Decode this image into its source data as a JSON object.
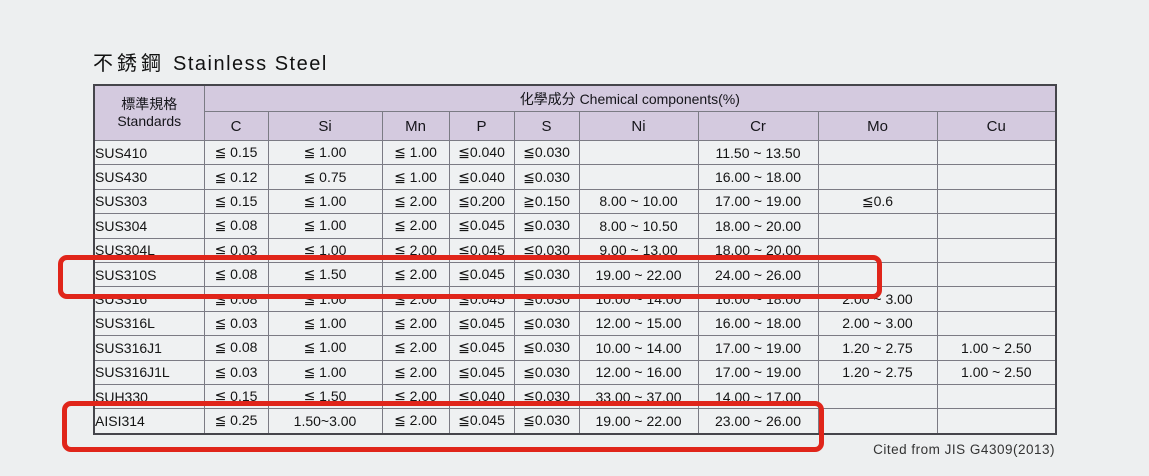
{
  "page": {
    "title_cjk": "不銹鋼",
    "title_en": "Stainless Steel",
    "footer": "Cited from JIS G4309(2013)"
  },
  "table": {
    "standards_header_cjk": "標準規格",
    "standards_header_en": "Standards",
    "group_header": "化學成分 Chemical components(%)",
    "columns": [
      "C",
      "Si",
      "Mn",
      "P",
      "S",
      "Ni",
      "Cr",
      "Mo",
      "Cu"
    ],
    "rows": [
      {
        "standard": "SUS410",
        "highlighted": false,
        "values": [
          "≦ 0.15",
          "≦ 1.00",
          "≦ 1.00",
          "≦0.040",
          "≦0.030",
          "",
          "11.50 ~ 13.50",
          "",
          ""
        ]
      },
      {
        "standard": "SUS430",
        "highlighted": false,
        "values": [
          "≦ 0.12",
          "≦ 0.75",
          "≦ 1.00",
          "≦0.040",
          "≦0.030",
          "",
          "16.00 ~ 18.00",
          "",
          ""
        ]
      },
      {
        "standard": "SUS303",
        "highlighted": false,
        "values": [
          "≦ 0.15",
          "≦ 1.00",
          "≦ 2.00",
          "≦0.200",
          "≧0.150",
          "8.00 ~ 10.00",
          "17.00 ~ 19.00",
          "≦0.6",
          ""
        ]
      },
      {
        "standard": "SUS304",
        "highlighted": false,
        "values": [
          "≦ 0.08",
          "≦ 1.00",
          "≦ 2.00",
          "≦0.045",
          "≦0.030",
          "8.00 ~ 10.50",
          "18.00 ~ 20.00",
          "",
          ""
        ]
      },
      {
        "standard": "SUS304L",
        "highlighted": false,
        "values": [
          "≦ 0.03",
          "≦ 1.00",
          "≦ 2.00",
          "≦0.045",
          "≦0.030",
          "9.00 ~ 13.00",
          "18.00 ~ 20.00",
          "",
          ""
        ]
      },
      {
        "standard": "SUS310S",
        "highlighted": true,
        "values": [
          "≦ 0.08",
          "≦ 1.50",
          "≦ 2.00",
          "≦0.045",
          "≦0.030",
          "19.00 ~ 22.00",
          "24.00 ~ 26.00",
          "",
          ""
        ]
      },
      {
        "standard": "SUS316",
        "highlighted": false,
        "values": [
          "≦ 0.08",
          "≦ 1.00",
          "≦ 2.00",
          "≦0.045",
          "≦0.030",
          "10.00 ~ 14.00",
          "16.00 ~ 18.00",
          "2.00 ~ 3.00",
          ""
        ]
      },
      {
        "standard": "SUS316L",
        "highlighted": false,
        "values": [
          "≦ 0.03",
          "≦ 1.00",
          "≦ 2.00",
          "≦0.045",
          "≦0.030",
          "12.00 ~ 15.00",
          "16.00 ~ 18.00",
          "2.00 ~ 3.00",
          ""
        ]
      },
      {
        "standard": "SUS316J1",
        "highlighted": false,
        "values": [
          "≦ 0.08",
          "≦ 1.00",
          "≦ 2.00",
          "≦0.045",
          "≦0.030",
          "10.00 ~ 14.00",
          "17.00 ~ 19.00",
          "1.20 ~ 2.75",
          "1.00 ~ 2.50"
        ]
      },
      {
        "standard": "SUS316J1L",
        "highlighted": false,
        "values": [
          "≦ 0.03",
          "≦ 1.00",
          "≦ 2.00",
          "≦0.045",
          "≦0.030",
          "12.00 ~ 16.00",
          "17.00 ~ 19.00",
          "1.20 ~ 2.75",
          "1.00 ~ 2.50"
        ]
      },
      {
        "standard": "SUH330",
        "highlighted": false,
        "values": [
          "≦ 0.15",
          "≦ 1.50",
          "≦ 2.00",
          "≦0.040",
          "≦0.030",
          "33.00 ~ 37.00",
          "14.00 ~ 17.00",
          "",
          ""
        ]
      },
      {
        "standard": "AISI314",
        "highlighted": true,
        "values": [
          "≦ 0.25",
          "1.50~3.00",
          "≦ 2.00",
          "≦0.045",
          "≦0.030",
          "19.00 ~ 22.00",
          "23.00 ~ 26.00",
          "",
          ""
        ]
      }
    ]
  },
  "colors": {
    "header_bg": "#d4cadf",
    "cell_bg": "#eff1f2",
    "page_bg": "#edeff0",
    "highlight_red": "#e0251a"
  }
}
